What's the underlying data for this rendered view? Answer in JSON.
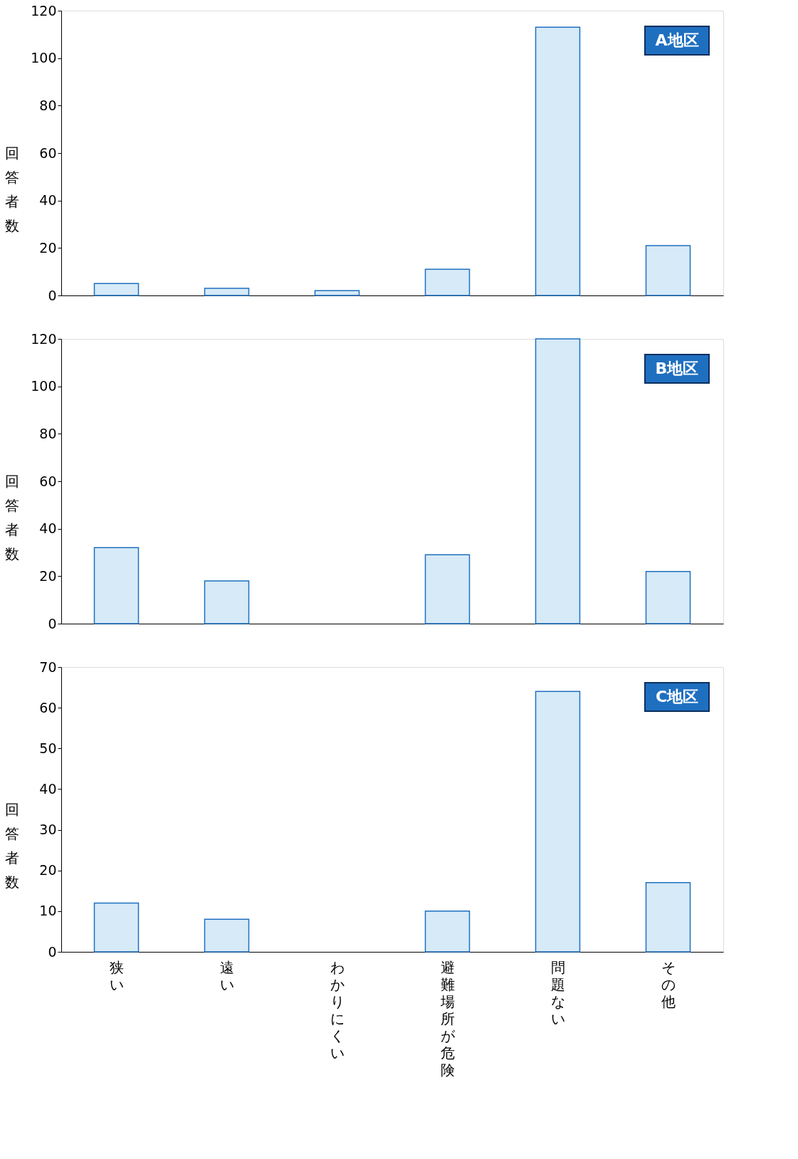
{
  "chart_data": [
    {
      "type": "bar",
      "categories": [
        "狭い",
        "遠い",
        "わかりにくい",
        "避難場所が危険",
        "問題ない",
        "その他"
      ],
      "values": [
        5,
        3,
        2,
        11,
        113,
        21
      ],
      "color": "#d6eaf8",
      "ylabel": "回答者数",
      "ylim": [
        0,
        120
      ],
      "yticks": [
        0,
        20,
        40,
        60,
        80,
        100,
        120
      ],
      "grid": false,
      "tick_labels": "y",
      "annotations": [
        "A地区"
      ]
    },
    {
      "type": "bar",
      "categories": [
        "狭い",
        "遠い",
        "わかりにくい",
        "避難場所が危険",
        "問題ない",
        "その他"
      ],
      "values": [
        32,
        18,
        null,
        29,
        120,
        22
      ],
      "color": "#d6eaf8",
      "ylabel": "回答者数",
      "ylim": [
        0,
        120
      ],
      "yticks": [
        0,
        20,
        40,
        60,
        80,
        100,
        120
      ],
      "grid": false,
      "tick_labels": "y",
      "annotations": [
        "B地区"
      ]
    },
    {
      "type": "bar",
      "categories": [
        "狭い",
        "遠い",
        "わかりにくい",
        "避難場所が危険",
        "問題ない",
        "その他"
      ],
      "values": [
        12,
        8,
        null,
        10,
        64,
        17
      ],
      "color": "#d6eaf8",
      "ylabel": "回答者数",
      "ylim": [
        0,
        70
      ],
      "yticks": [
        0,
        10,
        20,
        30,
        40,
        50,
        60,
        70
      ],
      "grid": false,
      "annotations": [
        "C地区"
      ]
    }
  ]
}
